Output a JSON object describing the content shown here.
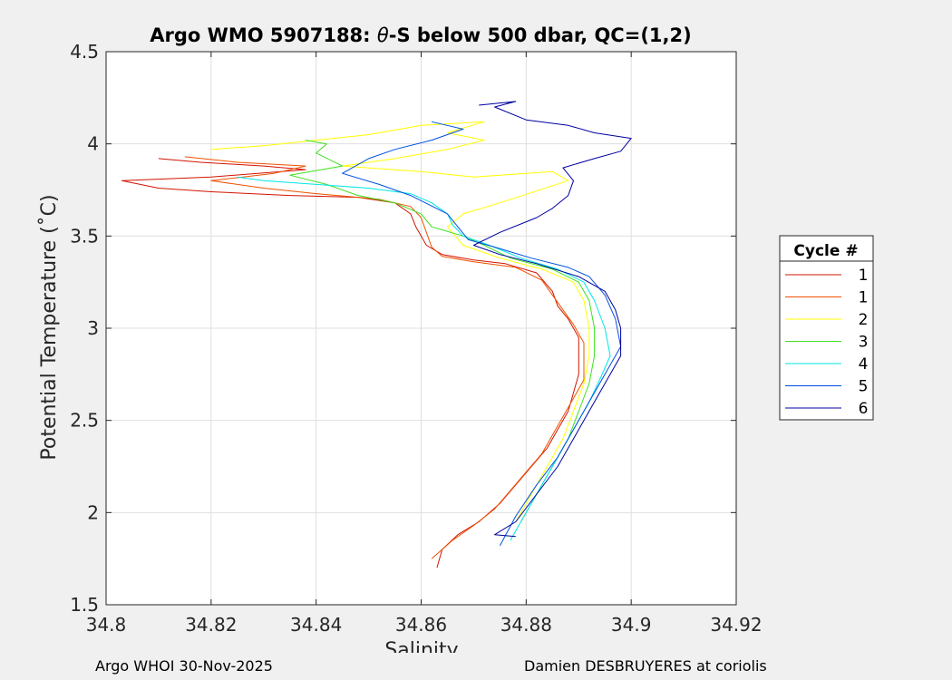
{
  "figure": {
    "footer_left": "Argo WHOI 30-Nov-2025",
    "footer_right": "Damien DESBRUYERES at coriolis"
  },
  "chart_data": {
    "type": "line",
    "title_prefix": "Argo WMO 5907188: ",
    "title_symbol": "θ",
    "title_suffix": "-S below 500 dbar,  QC=(1,2)",
    "xlabel": "Salinity",
    "ylabel": "Potential Temperature (˚C)",
    "xlim": [
      34.8,
      34.92
    ],
    "ylim": [
      1.5,
      4.5
    ],
    "xticks": [
      34.8,
      34.82,
      34.84,
      34.86,
      34.88,
      34.9,
      34.92
    ],
    "xtick_labels": [
      "34.8",
      "34.82",
      "34.84",
      "34.86",
      "34.88",
      "34.9",
      "34.92"
    ],
    "yticks": [
      1.5,
      2,
      2.5,
      3,
      3.5,
      4,
      4.5
    ],
    "ytick_labels": [
      "1.5",
      "2",
      "2.5",
      "3",
      "3.5",
      "4",
      "4.5"
    ],
    "grid": true,
    "legend_title": "Cycle #",
    "legend_position": "right",
    "series": [
      {
        "name": "1",
        "color": "#d21400",
        "points": [
          [
            34.863,
            1.7
          ],
          [
            34.864,
            1.8
          ],
          [
            34.867,
            1.88
          ],
          [
            34.871,
            1.95
          ],
          [
            34.875,
            2.05
          ],
          [
            34.878,
            2.15
          ],
          [
            34.881,
            2.25
          ],
          [
            34.884,
            2.35
          ],
          [
            34.886,
            2.45
          ],
          [
            34.888,
            2.55
          ],
          [
            34.889,
            2.65
          ],
          [
            34.89,
            2.75
          ],
          [
            34.89,
            2.85
          ],
          [
            34.89,
            2.95
          ],
          [
            34.888,
            3.05
          ],
          [
            34.886,
            3.12
          ],
          [
            34.885,
            3.2
          ],
          [
            34.882,
            3.3
          ],
          [
            34.876,
            3.35
          ],
          [
            34.87,
            3.37
          ],
          [
            34.864,
            3.4
          ],
          [
            34.861,
            3.45
          ],
          [
            34.859,
            3.55
          ],
          [
            34.858,
            3.62
          ],
          [
            34.855,
            3.68
          ],
          [
            34.848,
            3.71
          ],
          [
            34.835,
            3.72
          ],
          [
            34.82,
            3.74
          ],
          [
            34.81,
            3.76
          ],
          [
            34.803,
            3.8
          ],
          [
            34.82,
            3.82
          ],
          [
            34.838,
            3.86
          ],
          [
            34.83,
            3.88
          ],
          [
            34.818,
            3.9
          ],
          [
            34.81,
            3.92
          ]
        ]
      },
      {
        "name": "1",
        "color": "#f05000",
        "points": [
          [
            34.862,
            1.75
          ],
          [
            34.866,
            1.85
          ],
          [
            34.87,
            1.93
          ],
          [
            34.874,
            2.02
          ],
          [
            34.877,
            2.12
          ],
          [
            34.88,
            2.22
          ],
          [
            34.883,
            2.32
          ],
          [
            34.885,
            2.42
          ],
          [
            34.887,
            2.52
          ],
          [
            34.889,
            2.62
          ],
          [
            34.891,
            2.72
          ],
          [
            34.891,
            2.82
          ],
          [
            34.891,
            2.92
          ],
          [
            34.889,
            3.02
          ],
          [
            34.887,
            3.1
          ],
          [
            34.885,
            3.18
          ],
          [
            34.883,
            3.26
          ],
          [
            34.878,
            3.33
          ],
          [
            34.87,
            3.36
          ],
          [
            34.864,
            3.39
          ],
          [
            34.862,
            3.44
          ],
          [
            34.861,
            3.52
          ],
          [
            34.86,
            3.6
          ],
          [
            34.858,
            3.66
          ],
          [
            34.852,
            3.7
          ],
          [
            34.84,
            3.73
          ],
          [
            34.83,
            3.76
          ],
          [
            34.82,
            3.8
          ],
          [
            34.832,
            3.84
          ],
          [
            34.838,
            3.88
          ],
          [
            34.825,
            3.9
          ],
          [
            34.815,
            3.93
          ]
        ]
      },
      {
        "name": "2",
        "color": "#ffff00",
        "points": [
          [
            34.878,
            1.95
          ],
          [
            34.881,
            2.1
          ],
          [
            34.884,
            2.25
          ],
          [
            34.887,
            2.4
          ],
          [
            34.889,
            2.55
          ],
          [
            34.891,
            2.7
          ],
          [
            34.892,
            2.85
          ],
          [
            34.892,
            3.0
          ],
          [
            34.891,
            3.15
          ],
          [
            34.889,
            3.25
          ],
          [
            34.883,
            3.32
          ],
          [
            34.875,
            3.38
          ],
          [
            34.868,
            3.45
          ],
          [
            34.865,
            3.55
          ],
          [
            34.868,
            3.62
          ],
          [
            34.875,
            3.68
          ],
          [
            34.888,
            3.8
          ],
          [
            34.885,
            3.85
          ],
          [
            34.87,
            3.82
          ],
          [
            34.86,
            3.85
          ],
          [
            34.845,
            3.88
          ],
          [
            34.855,
            3.92
          ],
          [
            34.865,
            3.97
          ],
          [
            34.872,
            4.02
          ],
          [
            34.865,
            4.06
          ],
          [
            34.872,
            4.12
          ],
          [
            34.86,
            4.1
          ],
          [
            34.85,
            4.05
          ],
          [
            34.84,
            4.02
          ],
          [
            34.83,
            3.99
          ],
          [
            34.82,
            3.97
          ]
        ]
      },
      {
        "name": "3",
        "color": "#40e020",
        "points": [
          [
            34.879,
            1.95
          ],
          [
            34.882,
            2.1
          ],
          [
            34.885,
            2.25
          ],
          [
            34.888,
            2.4
          ],
          [
            34.89,
            2.55
          ],
          [
            34.892,
            2.7
          ],
          [
            34.893,
            2.85
          ],
          [
            34.893,
            3.0
          ],
          [
            34.892,
            3.15
          ],
          [
            34.89,
            3.25
          ],
          [
            34.885,
            3.32
          ],
          [
            34.877,
            3.38
          ],
          [
            34.872,
            3.45
          ],
          [
            34.868,
            3.5
          ],
          [
            34.862,
            3.55
          ],
          [
            34.86,
            3.62
          ],
          [
            34.855,
            3.68
          ],
          [
            34.848,
            3.72
          ],
          [
            34.842,
            3.78
          ],
          [
            34.835,
            3.83
          ],
          [
            34.845,
            3.88
          ],
          [
            34.84,
            3.95
          ],
          [
            34.842,
            4.0
          ],
          [
            34.838,
            4.02
          ]
        ]
      },
      {
        "name": "4",
        "color": "#00e6e6",
        "points": [
          [
            34.877,
            1.85
          ],
          [
            34.88,
            2.0
          ],
          [
            34.883,
            2.15
          ],
          [
            34.886,
            2.3
          ],
          [
            34.889,
            2.45
          ],
          [
            34.892,
            2.6
          ],
          [
            34.894,
            2.72
          ],
          [
            34.896,
            2.85
          ],
          [
            34.895,
            3.0
          ],
          [
            34.893,
            3.15
          ],
          [
            34.891,
            3.25
          ],
          [
            34.886,
            3.32
          ],
          [
            34.879,
            3.38
          ],
          [
            34.873,
            3.45
          ],
          [
            34.868,
            3.5
          ],
          [
            34.866,
            3.56
          ],
          [
            34.865,
            3.62
          ],
          [
            34.862,
            3.68
          ],
          [
            34.858,
            3.73
          ],
          [
            34.85,
            3.76
          ],
          [
            34.84,
            3.78
          ],
          [
            34.83,
            3.8
          ],
          [
            34.825,
            3.82
          ]
        ]
      },
      {
        "name": "5",
        "color": "#0050e0",
        "points": [
          [
            34.875,
            1.82
          ],
          [
            34.878,
            1.98
          ],
          [
            34.882,
            2.15
          ],
          [
            34.886,
            2.3
          ],
          [
            34.889,
            2.45
          ],
          [
            34.892,
            2.6
          ],
          [
            34.895,
            2.75
          ],
          [
            34.898,
            2.9
          ],
          [
            34.897,
            3.05
          ],
          [
            34.895,
            3.18
          ],
          [
            34.892,
            3.28
          ],
          [
            34.888,
            3.33
          ],
          [
            34.881,
            3.38
          ],
          [
            34.874,
            3.44
          ],
          [
            34.869,
            3.48
          ],
          [
            34.867,
            3.55
          ],
          [
            34.865,
            3.62
          ],
          [
            34.858,
            3.72
          ],
          [
            34.852,
            3.78
          ],
          [
            34.845,
            3.84
          ],
          [
            34.85,
            3.92
          ],
          [
            34.855,
            3.97
          ],
          [
            34.862,
            4.02
          ],
          [
            34.868,
            4.08
          ],
          [
            34.862,
            4.12
          ]
        ]
      },
      {
        "name": "6",
        "color": "#0000a0",
        "points": [
          [
            34.878,
            1.87
          ],
          [
            34.874,
            1.88
          ],
          [
            34.878,
            1.95
          ],
          [
            34.882,
            2.1
          ],
          [
            34.886,
            2.25
          ],
          [
            34.889,
            2.4
          ],
          [
            34.892,
            2.55
          ],
          [
            34.895,
            2.7
          ],
          [
            34.898,
            2.85
          ],
          [
            34.898,
            3.0
          ],
          [
            34.897,
            3.1
          ],
          [
            34.895,
            3.2
          ],
          [
            34.89,
            3.28
          ],
          [
            34.882,
            3.35
          ],
          [
            34.875,
            3.4
          ],
          [
            34.87,
            3.45
          ],
          [
            34.875,
            3.52
          ],
          [
            34.882,
            3.6
          ],
          [
            34.885,
            3.65
          ],
          [
            34.888,
            3.72
          ],
          [
            34.889,
            3.8
          ],
          [
            34.887,
            3.87
          ],
          [
            34.893,
            3.92
          ],
          [
            34.898,
            3.96
          ],
          [
            34.9,
            4.03
          ],
          [
            34.893,
            4.06
          ],
          [
            34.888,
            4.1
          ],
          [
            34.88,
            4.13
          ],
          [
            34.874,
            4.2
          ],
          [
            34.878,
            4.23
          ],
          [
            34.871,
            4.21
          ]
        ]
      }
    ]
  }
}
